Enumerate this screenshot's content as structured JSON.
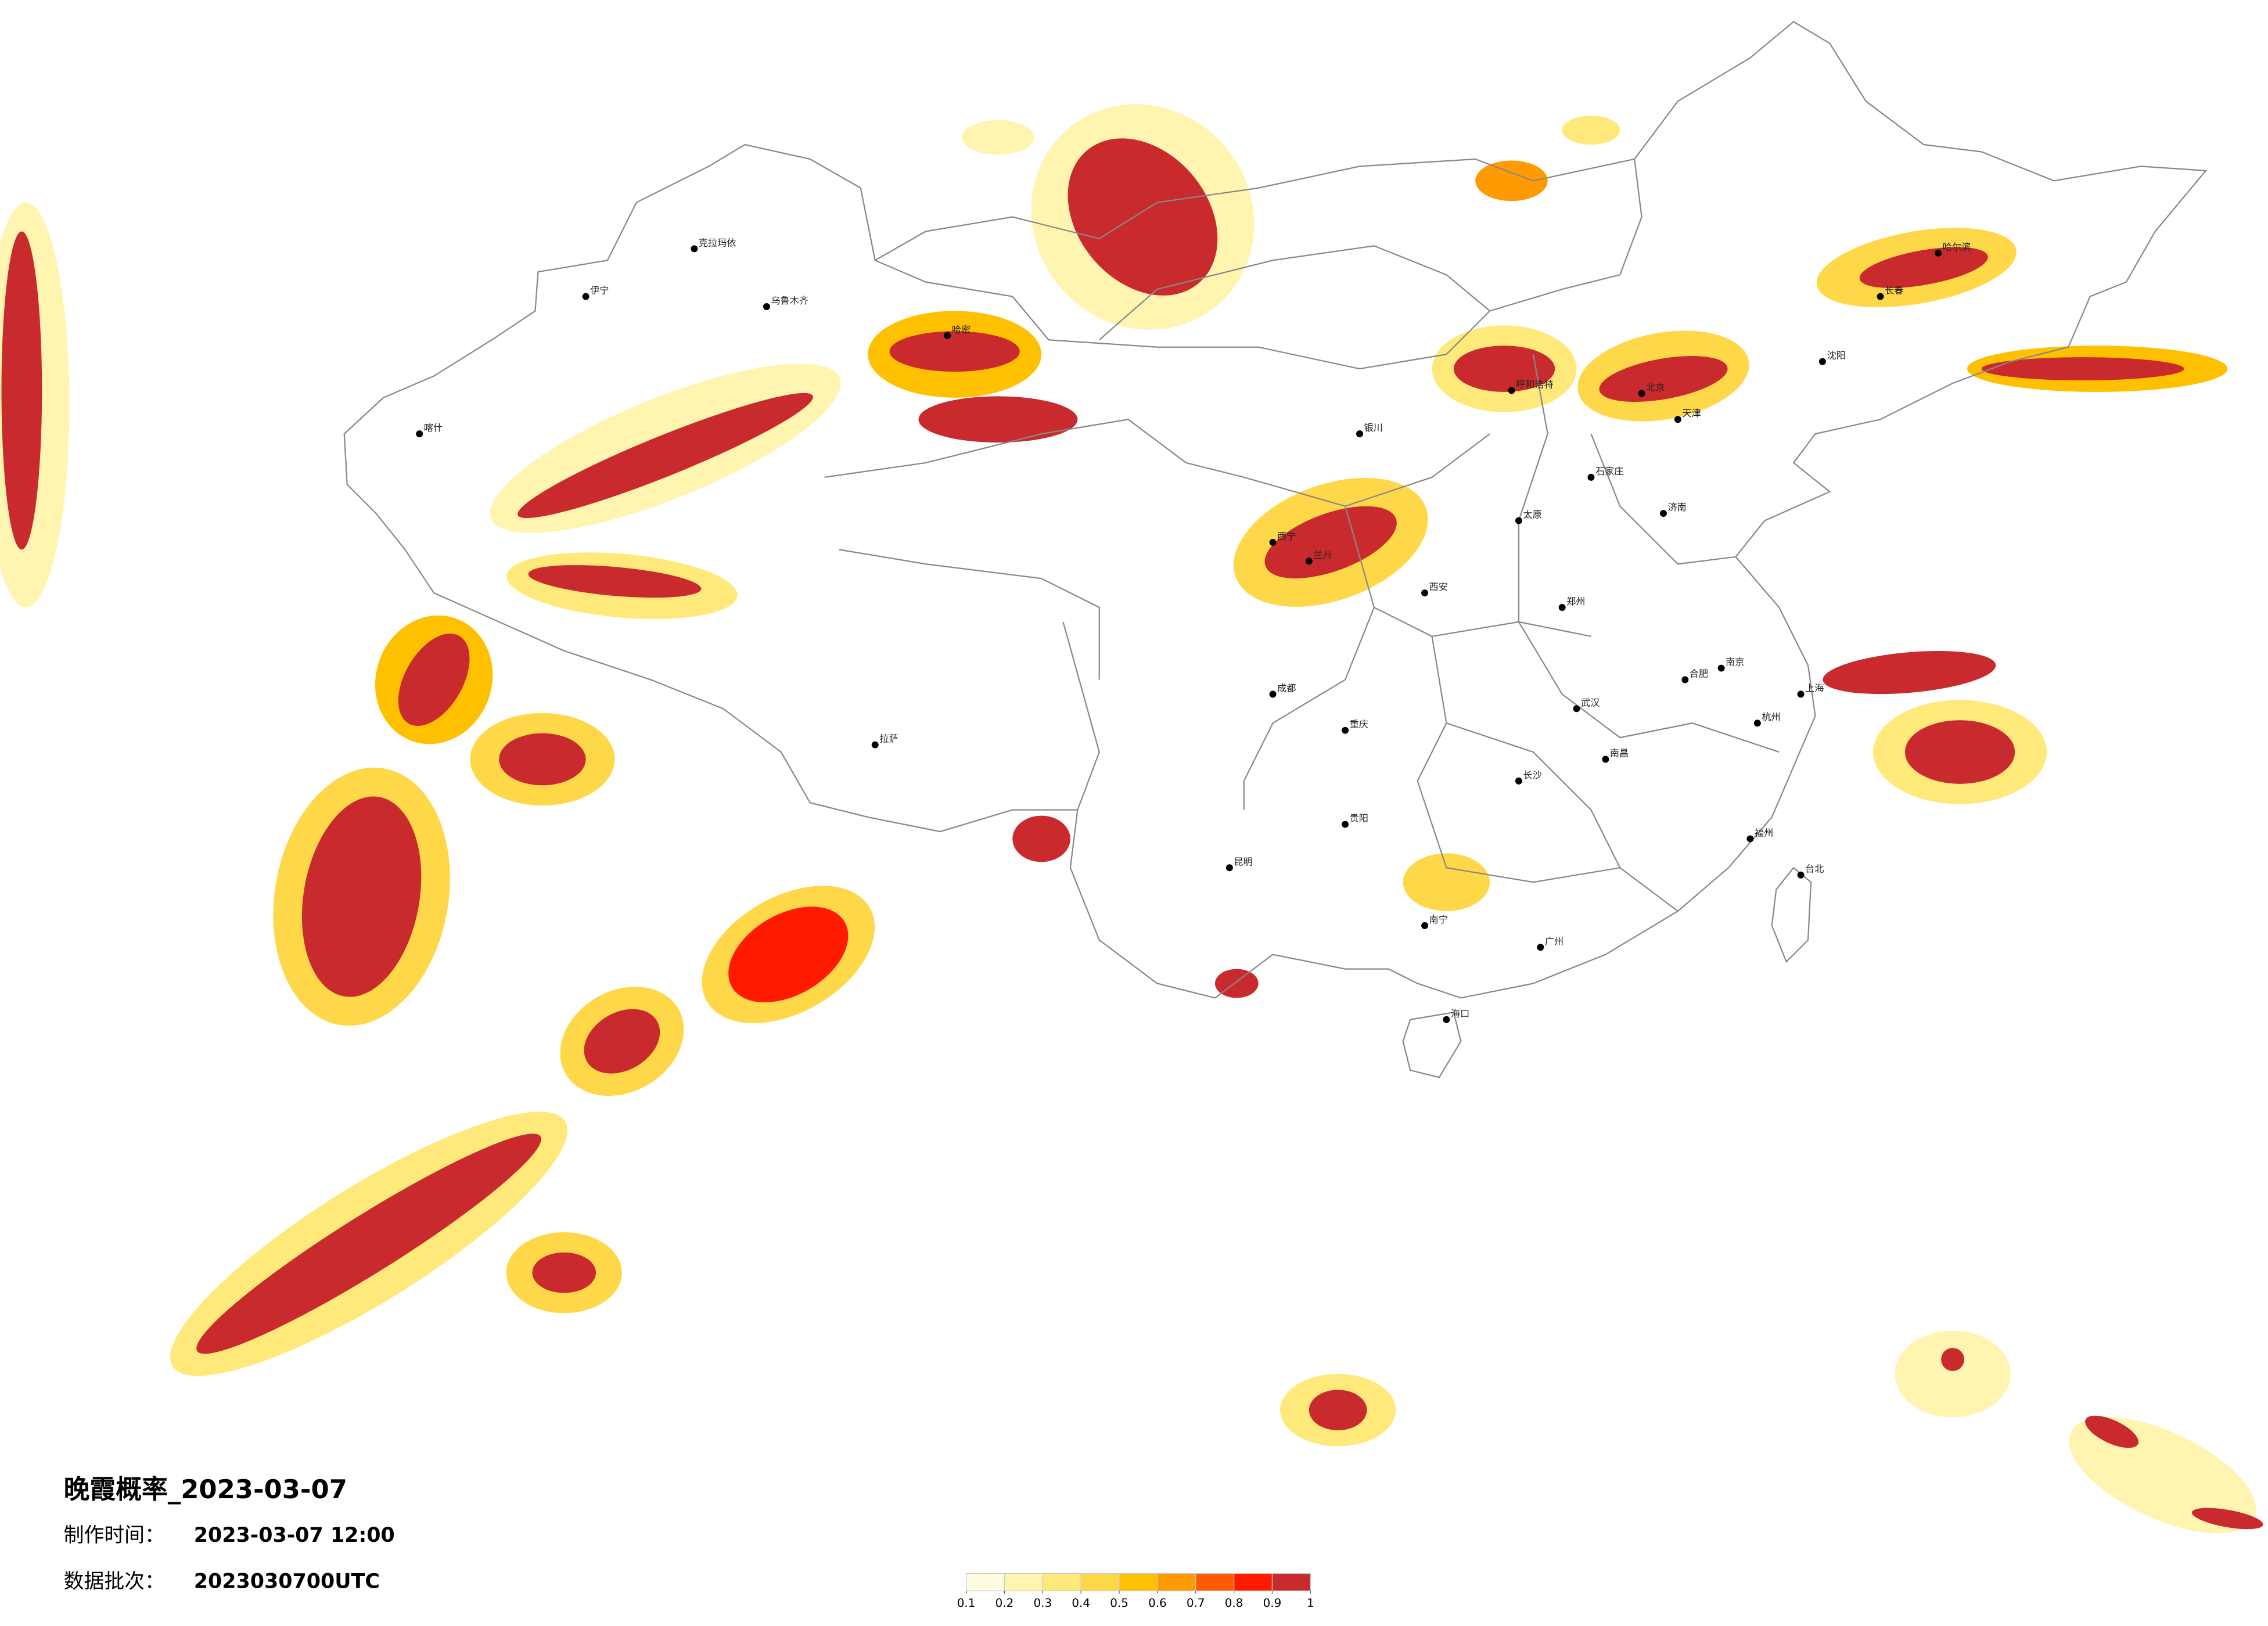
{
  "title": "晚霞概率_2023-03-07",
  "info": [
    {
      "label": "制作时间：",
      "value": "2023-03-07 12:00"
    },
    {
      "label": "数据批次：",
      "value": "2023030700UTC"
    }
  ],
  "legend": {
    "colors": [
      "#fffbe0",
      "#fff5b0",
      "#ffe97a",
      "#ffd84a",
      "#ffc000",
      "#ff9a00",
      "#ff5a00",
      "#ff1a00",
      "#c82a2e"
    ],
    "ticks": [
      0.1,
      0.2,
      0.3,
      0.4,
      0.5,
      0.6,
      0.7,
      0.8,
      0.9,
      1
    ]
  },
  "cities": [
    "喀什",
    "伊宁",
    "克拉玛依",
    "乌鲁木齐",
    "哈密",
    "拉萨",
    "西宁",
    "兰州",
    "银川",
    "呼和浩特",
    "西安",
    "太原",
    "石家庄",
    "北京",
    "天津",
    "济南",
    "郑州",
    "武汉",
    "合肥",
    "南京",
    "上海",
    "杭州",
    "南昌",
    "长沙",
    "福州",
    "成都",
    "重庆",
    "贵阳",
    "昆明",
    "南宁",
    "广州",
    "海口",
    "台北",
    "沈阳",
    "长春",
    "哈尔滨"
  ]
}
